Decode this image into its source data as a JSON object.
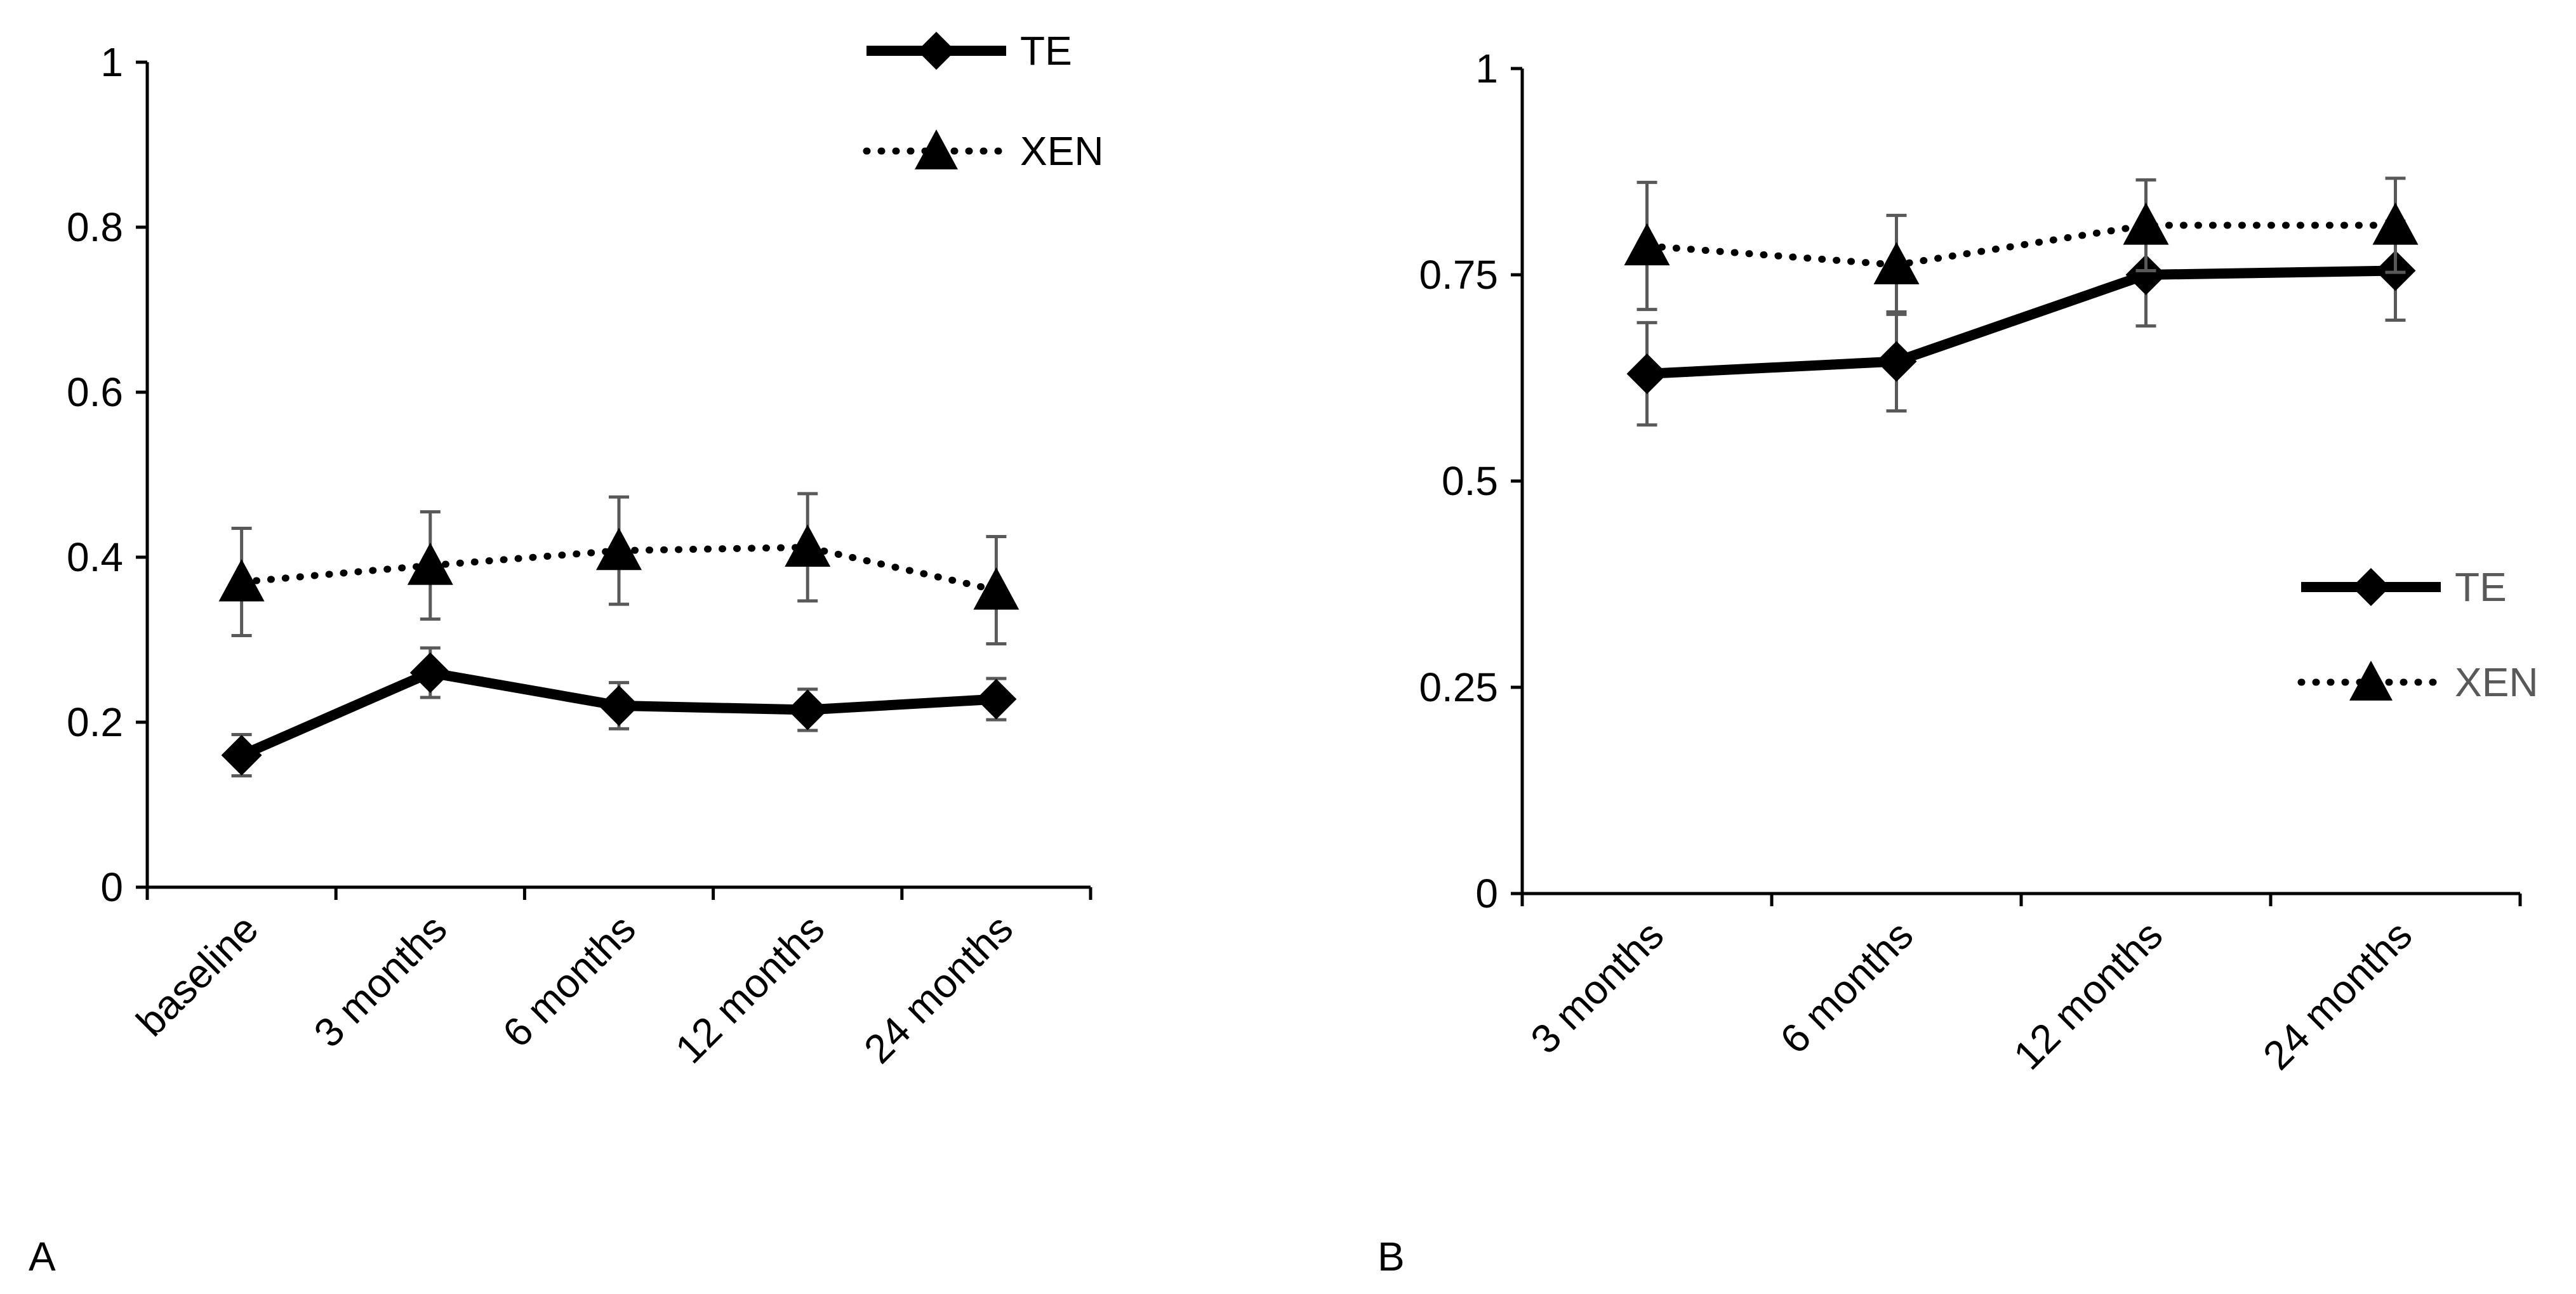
{
  "colors": {
    "series_line": "#000000",
    "error_bar": "#595959",
    "legend_text_a": "#000000",
    "legend_text_b": "#595959",
    "axis": "#000000",
    "background": "#ffffff"
  },
  "chart_data": [
    {
      "panel": "A",
      "type": "line",
      "title": "",
      "xlabel": "",
      "ylabel": "",
      "categories": [
        "baseline",
        "3 months",
        "6 months",
        "12 months",
        "24 months"
      ],
      "ylim": [
        0,
        1
      ],
      "yticks": [
        0,
        0.2,
        0.4,
        0.6,
        0.8,
        1
      ],
      "ytick_labels": [
        "0",
        "0.2",
        "0.4",
        "0.6",
        "0.8",
        "1"
      ],
      "grid": false,
      "legend_position": "top-right",
      "series": [
        {
          "name": "TE",
          "marker": "diamond",
          "line_style": "solid",
          "values": [
            0.16,
            0.26,
            0.22,
            0.215,
            0.228
          ],
          "errors": [
            0.025,
            0.03,
            0.028,
            0.025,
            0.025
          ]
        },
        {
          "name": "XEN",
          "marker": "triangle",
          "line_style": "dotted",
          "values": [
            0.37,
            0.39,
            0.408,
            0.412,
            0.36
          ],
          "errors": [
            0.065,
            0.065,
            0.065,
            0.065,
            0.065
          ]
        }
      ]
    },
    {
      "panel": "B",
      "type": "line",
      "title": "",
      "xlabel": "",
      "ylabel": "",
      "categories": [
        "3 months",
        "6 months",
        "12 months",
        "24 months"
      ],
      "ylim": [
        0,
        1
      ],
      "yticks": [
        0,
        0.25,
        0.5,
        0.75,
        1
      ],
      "ytick_labels": [
        "0",
        "0.25",
        "0.5",
        "0.75",
        "1"
      ],
      "grid": false,
      "legend_position": "right",
      "series": [
        {
          "name": "TE",
          "marker": "diamond",
          "line_style": "solid",
          "values": [
            0.63,
            0.645,
            0.75,
            0.755
          ],
          "errors": [
            0.062,
            0.06,
            0.062,
            0.06
          ]
        },
        {
          "name": "XEN",
          "marker": "triangle",
          "line_style": "dotted",
          "values": [
            0.785,
            0.762,
            0.81,
            0.81
          ],
          "errors": [
            0.077,
            0.06,
            0.055,
            0.057
          ]
        }
      ]
    }
  ]
}
